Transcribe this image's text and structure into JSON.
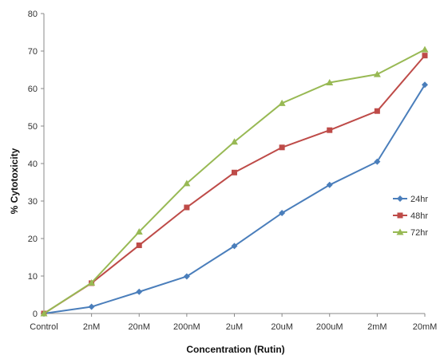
{
  "chart_data": {
    "type": "line",
    "title": "",
    "xlabel": "Concentration (Rutin)",
    "ylabel": "% Cytotoxicity",
    "categories": [
      "Control",
      "2nM",
      "20nM",
      "200nM",
      "2uM",
      "20uM",
      "200uM",
      "2mM",
      "20mM"
    ],
    "ylim": [
      0,
      80
    ],
    "yticks": [
      0,
      10,
      20,
      30,
      40,
      50,
      60,
      70,
      80
    ],
    "grid": false,
    "legend_position": "right",
    "series": [
      {
        "name": "24hr",
        "color": "#4a7ebb",
        "marker": "diamond",
        "values": [
          0,
          1.8,
          5.8,
          9.9,
          18.0,
          26.8,
          34.3,
          40.5,
          61.0
        ]
      },
      {
        "name": "48hr",
        "color": "#be4b48",
        "marker": "square",
        "values": [
          0,
          8.1,
          18.2,
          28.3,
          37.6,
          44.3,
          48.9,
          54.0,
          68.8
        ]
      },
      {
        "name": "72hr",
        "color": "#98b954",
        "marker": "triangle",
        "values": [
          0,
          8.2,
          21.8,
          34.7,
          45.8,
          56.1,
          61.6,
          63.8,
          70.4
        ]
      }
    ]
  }
}
